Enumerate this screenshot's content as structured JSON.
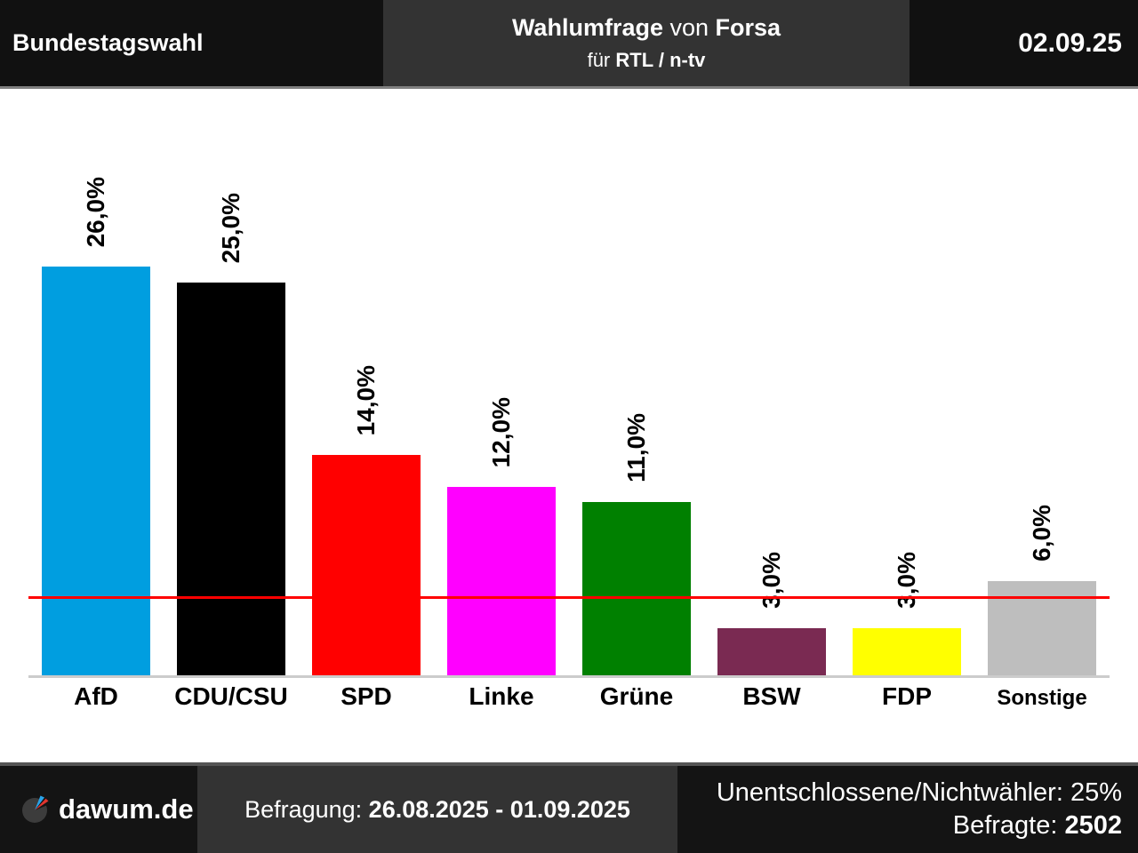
{
  "header": {
    "left_title": "Bundestagswahl",
    "center_title_bold1": "Wahlumfrage",
    "center_title_mid": " von ",
    "center_title_bold2": "Forsa",
    "subtitle_prefix": "für ",
    "subtitle_bold": "RTL / n-tv",
    "date": "02.09.25"
  },
  "chart_data": {
    "type": "bar",
    "title": "Wahlumfrage von Forsa für RTL / n-tv",
    "categories": [
      "AfD",
      "CDU/CSU",
      "SPD",
      "Linke",
      "Grüne",
      "BSW",
      "FDP",
      "Sonstige"
    ],
    "values": [
      26.0,
      25.0,
      14.0,
      12.0,
      11.0,
      3.0,
      3.0,
      6.0
    ],
    "value_labels": [
      "26,0%",
      "25,0%",
      "14,0%",
      "12,0%",
      "11,0%",
      "3,0%",
      "3,0%",
      "6,0%"
    ],
    "bar_colors": [
      "#009ee0",
      "#000000",
      "#ff0000",
      "#ff00ff",
      "#008000",
      "#7a2a52",
      "#ffff00",
      "#bebebe"
    ],
    "threshold": {
      "value": 5.0,
      "color": "#ff0000"
    },
    "ylim": [
      0,
      26
    ],
    "grid": false,
    "legend": false
  },
  "footer": {
    "brand": "dawum.de",
    "survey_label": "Befragung: ",
    "survey_period": "26.08.2025 - 01.09.2025",
    "undecided_line": "Unentschlossene/Nichtwähler: 25%",
    "respondents_label": "Befragte: ",
    "respondents_value": "2502"
  }
}
